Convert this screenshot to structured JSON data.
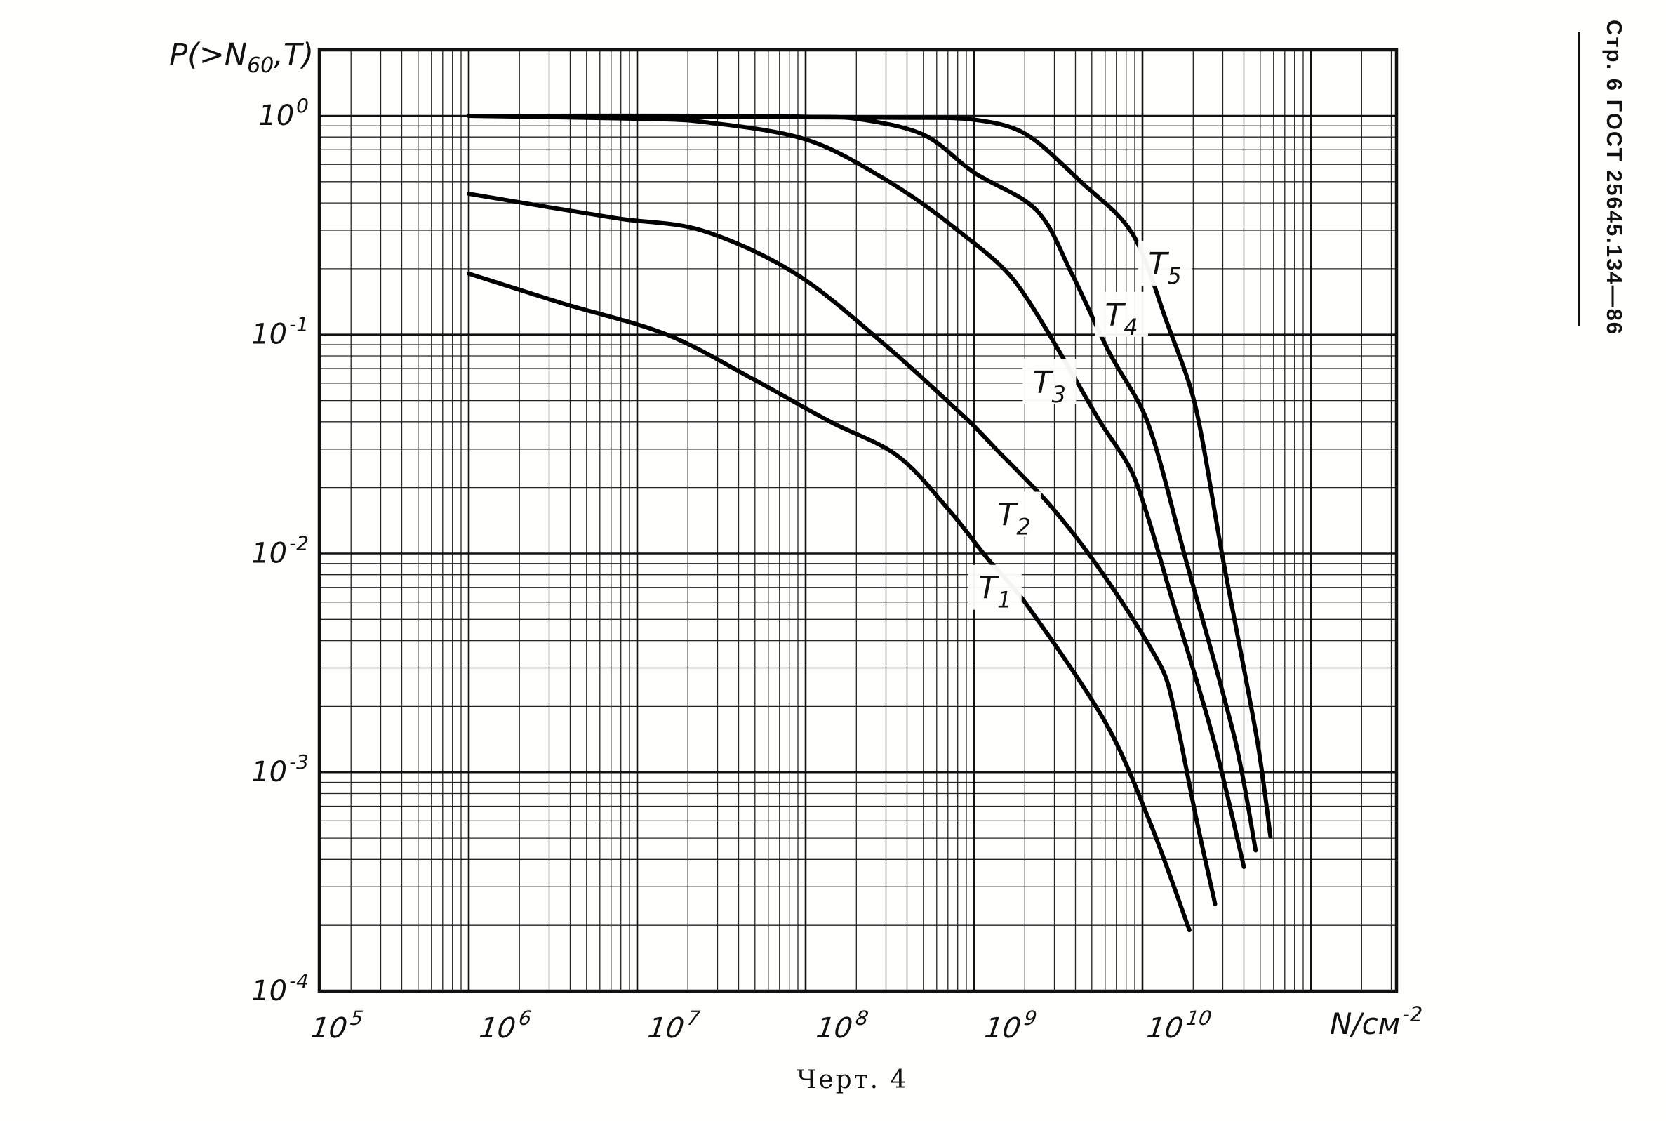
{
  "page": {
    "header": "Стр. 6 ГОСТ 25645.134—86",
    "caption": "Черт. 4"
  },
  "chart_data": {
    "type": "line",
    "title": "Черт. 4",
    "x_scale": "log",
    "y_scale": "log",
    "xlabel": {
      "text": "N/см⁻²",
      "main": "N/см",
      "sup": "-2"
    },
    "ylabel": {
      "text": "P(>N₆₀,T)",
      "pre": "P(>N",
      "sub": "60",
      "post": ",T)"
    },
    "axis": {
      "x_log_min": 4.1125,
      "x_log_max": 10.5083,
      "y_log_min": -4,
      "y_log_max": 0.3015
    },
    "grid": "log-log minor gridlines on",
    "legend_position": "labels next to curves",
    "x_ticks": [
      {
        "label": "10^5",
        "exp": "5",
        "value": 100000.0
      },
      {
        "label": "10^6",
        "exp": "6",
        "value": 1000000.0
      },
      {
        "label": "10^7",
        "exp": "7",
        "value": 10000000.0
      },
      {
        "label": "10^8",
        "exp": "8",
        "value": 100000000.0
      },
      {
        "label": "10^9",
        "exp": "9",
        "value": 1000000000.0
      },
      {
        "label": "10^10",
        "exp": "10",
        "value": 10000000000.0
      }
    ],
    "y_ticks": [
      {
        "label": "10^0",
        "exp": "0",
        "value": 1
      },
      {
        "label": "10^-1",
        "exp": "-1",
        "value": 0.1
      },
      {
        "label": "10^-2",
        "exp": "-2",
        "value": 0.01
      },
      {
        "label": "10^-3",
        "exp": "-3",
        "value": 0.001
      },
      {
        "label": "10^-4",
        "exp": "-4",
        "value": 0.0001
      }
    ],
    "series": [
      {
        "name": "T1",
        "label_main": "T",
        "label_sub": "1",
        "label_at": [
          133000000.0,
          0.0069
        ],
        "points": [
          [
            100000.0,
            0.19
          ],
          [
            350000.0,
            0.14
          ],
          [
            1500000.0,
            0.1
          ],
          [
            5000000.0,
            0.062
          ],
          [
            14000000.0,
            0.04
          ],
          [
            35000000.0,
            0.028
          ],
          [
            70000000.0,
            0.016
          ],
          [
            120000000.0,
            0.0095
          ],
          [
            200000000.0,
            0.006
          ],
          [
            600000000.0,
            0.0017
          ],
          [
            1100000000.0,
            0.0006
          ],
          [
            1900000000.0,
            0.00019
          ]
        ]
      },
      {
        "name": "T2",
        "label_main": "T",
        "label_sub": "2",
        "label_at": [
          173000000.0,
          0.0149
        ],
        "points": [
          [
            100000.0,
            0.44
          ],
          [
            760000.0,
            0.34
          ],
          [
            2400000.0,
            0.3
          ],
          [
            8700000.0,
            0.19
          ],
          [
            30000000.0,
            0.089
          ],
          [
            94000000.0,
            0.04
          ],
          [
            135000000.0,
            0.03
          ],
          [
            295000000.0,
            0.016
          ],
          [
            630000000.0,
            0.0074
          ],
          [
            1300000000.0,
            0.003
          ],
          [
            1550000000.0,
            0.0019
          ],
          [
            2100000000.0,
            0.0006
          ],
          [
            2700000000.0,
            0.00025
          ]
        ]
      },
      {
        "name": "T3",
        "label_main": "T",
        "label_sub": "3",
        "label_at": [
          280000000.0,
          0.06
        ],
        "points": [
          [
            100000.0,
            1.0
          ],
          [
            1000000.0,
            0.97
          ],
          [
            2400000.0,
            0.94
          ],
          [
            10000000.0,
            0.78
          ],
          [
            30000000.0,
            0.51
          ],
          [
            80000000.0,
            0.3
          ],
          [
            180000000.0,
            0.17
          ],
          [
            560000000.0,
            0.04
          ],
          [
            900000000.0,
            0.022
          ],
          [
            1600000000.0,
            0.0052
          ],
          [
            2650000000.0,
            0.0014
          ],
          [
            4000000000.0,
            0.00037
          ]
        ]
      },
      {
        "name": "T4",
        "label_main": "T",
        "label_sub": "4",
        "label_at": [
          750000000.0,
          0.122
        ],
        "points": [
          [
            100000.0,
            1.0
          ],
          [
            4000000.0,
            1.0
          ],
          [
            10000000.0,
            0.99
          ],
          [
            20000000.0,
            0.97
          ],
          [
            50000000.0,
            0.82
          ],
          [
            100000000.0,
            0.55
          ],
          [
            235000000.0,
            0.37
          ],
          [
            380000000.0,
            0.19
          ],
          [
            630000000.0,
            0.084
          ],
          [
            1070000000.0,
            0.04
          ],
          [
            1800000000.0,
            0.0095
          ],
          [
            3550000000.0,
            0.0014
          ],
          [
            4700000000.0,
            0.00044
          ]
        ]
      },
      {
        "name": "T5",
        "label_main": "T",
        "label_sub": "5",
        "label_at": [
          1360000000.0,
          0.209
        ],
        "points": [
          [
            100000.0,
            1.0
          ],
          [
            40000000.0,
            0.98
          ],
          [
            100000000.0,
            0.96
          ],
          [
            200000000.0,
            0.83
          ],
          [
            430000000.0,
            0.5
          ],
          [
            870000000.0,
            0.29
          ],
          [
            1400000000.0,
            0.113
          ],
          [
            2050000000.0,
            0.048
          ],
          [
            3000000000.0,
            0.0095
          ],
          [
            4800000000.0,
            0.0014
          ],
          [
            5750000000.0,
            0.00051
          ]
        ]
      }
    ],
    "ink_color": "#111111",
    "paper_color": "#fefefc"
  }
}
